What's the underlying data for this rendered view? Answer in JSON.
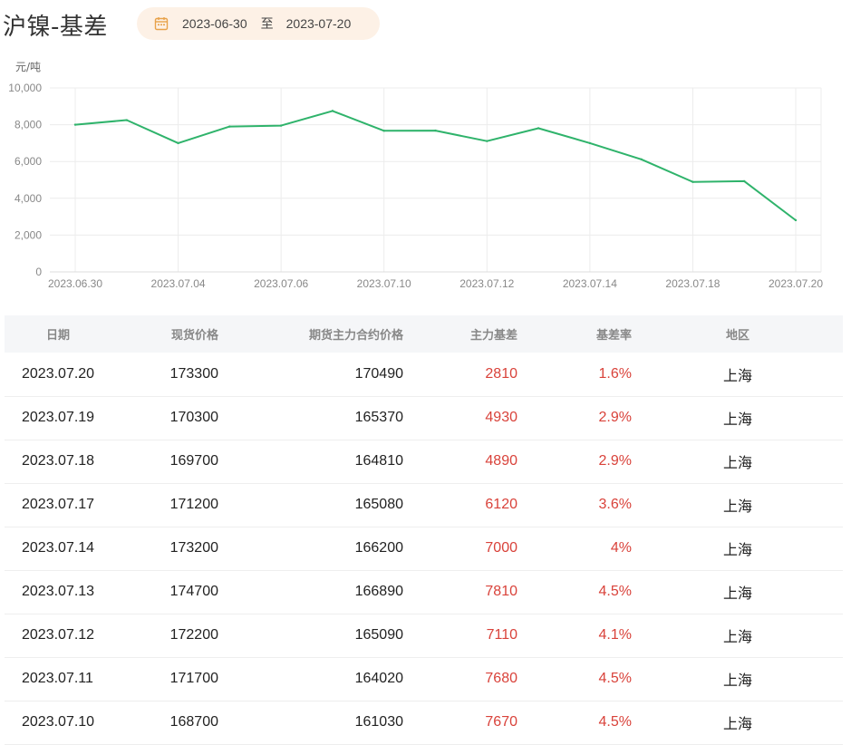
{
  "header": {
    "title": "沪镍-基差",
    "date_start": "2023-06-30",
    "date_separator": "至",
    "date_end": "2023-07-20"
  },
  "colors": {
    "line": "#2fb36b",
    "negative_accent": "#d9423a",
    "pill_bg": "#fdf1e6",
    "calendar_icon": "#e8a24a"
  },
  "chart_data": {
    "type": "line",
    "ylabel": "元/吨",
    "ylim": [
      0,
      10000
    ],
    "yticks": [
      0,
      2000,
      4000,
      6000,
      8000,
      10000
    ],
    "ytick_labels": [
      "0",
      "2,000",
      "4,000",
      "6,000",
      "8,000",
      "10,000"
    ],
    "xtick_labels": [
      "2023.06.30",
      "2023.07.04",
      "2023.07.06",
      "2023.07.10",
      "2023.07.12",
      "2023.07.14",
      "2023.07.18",
      "2023.07.20"
    ],
    "x": [
      "2023.06.30",
      "2023.07.03",
      "2023.07.04",
      "2023.07.05",
      "2023.07.06",
      "2023.07.07",
      "2023.07.10",
      "2023.07.11",
      "2023.07.12",
      "2023.07.13",
      "2023.07.14",
      "2023.07.17",
      "2023.07.18",
      "2023.07.19",
      "2023.07.20"
    ],
    "series": [
      {
        "values": [
          8000,
          8250,
          7000,
          7900,
          7950,
          8750,
          7670,
          7680,
          7110,
          7810,
          7000,
          6120,
          4890,
          4930,
          2810
        ]
      }
    ],
    "grid": true,
    "legend": "none"
  },
  "table": {
    "headers": [
      "日期",
      "现货价格",
      "期货主力合约价格",
      "主力基差",
      "基差率",
      "地区"
    ],
    "rows": [
      [
        "2023.07.20",
        "173300",
        "170490",
        "2810",
        "1.6%",
        "上海"
      ],
      [
        "2023.07.19",
        "170300",
        "165370",
        "4930",
        "2.9%",
        "上海"
      ],
      [
        "2023.07.18",
        "169700",
        "164810",
        "4890",
        "2.9%",
        "上海"
      ],
      [
        "2023.07.17",
        "171200",
        "165080",
        "6120",
        "3.6%",
        "上海"
      ],
      [
        "2023.07.14",
        "173200",
        "166200",
        "7000",
        "4%",
        "上海"
      ],
      [
        "2023.07.13",
        "174700",
        "166890",
        "7810",
        "4.5%",
        "上海"
      ],
      [
        "2023.07.12",
        "172200",
        "165090",
        "7110",
        "4.1%",
        "上海"
      ],
      [
        "2023.07.11",
        "171700",
        "164020",
        "7680",
        "4.5%",
        "上海"
      ],
      [
        "2023.07.10",
        "168700",
        "161030",
        "7670",
        "4.5%",
        "上海"
      ]
    ]
  }
}
